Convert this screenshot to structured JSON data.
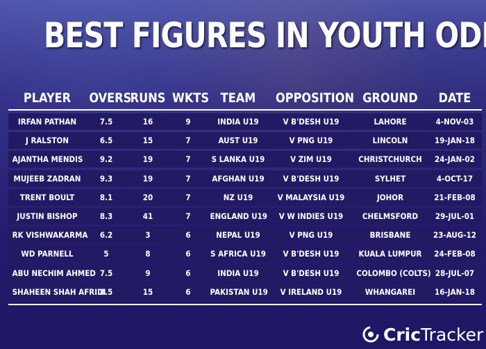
{
  "title": "BEST FIGURES IN YOUTH ODIs",
  "columns": {
    "player": "PLAYER",
    "overs": "OVERS",
    "runs": "RUNS",
    "wkts": "WKTS",
    "team": "TEAM",
    "opposition": "OPPOSITION",
    "ground": "GROUND",
    "date": "DATE"
  },
  "rows": [
    {
      "player": "IRFAN PATHAN",
      "overs": "7.5",
      "runs": "16",
      "wkts": "9",
      "team": "INDIA U19",
      "opposition": "V B'DESH U19",
      "ground": "LAHORE",
      "date": "4-NOV-03"
    },
    {
      "player": "J RALSTON",
      "overs": "6.5",
      "runs": "15",
      "wkts": "7",
      "team": "AUST U19",
      "opposition": "V PNG U19",
      "ground": "LINCOLN",
      "date": "19-JAN-18"
    },
    {
      "player": "AJANTHA MENDIS",
      "overs": "9.2",
      "runs": "19",
      "wkts": "7",
      "team": "S LANKA U19",
      "opposition": "V ZIM U19",
      "ground": "CHRISTCHURCH",
      "date": "24-JAN-02"
    },
    {
      "player": "MUJEEB ZADRAN",
      "overs": "9.3",
      "runs": "19",
      "wkts": "7",
      "team": "AFGHAN U19",
      "opposition": "V B'DESH U19",
      "ground": "SYLHET",
      "date": "4-OCT-17"
    },
    {
      "player": "TRENT BOULT",
      "overs": "8.1",
      "runs": "20",
      "wkts": "7",
      "team": "NZ U19",
      "opposition": "V MALAYSIA U19",
      "ground": "JOHOR",
      "date": "21-FEB-08"
    },
    {
      "player": "JUSTIN BISHOP",
      "overs": "8.3",
      "runs": "41",
      "wkts": "7",
      "team": "ENGLAND U19",
      "opposition": "V W INDIES U19",
      "ground": "CHELMSFORD",
      "date": "29-JUL-01"
    },
    {
      "player": "RK VISHWAKARMA",
      "overs": "6.2",
      "runs": "3",
      "wkts": "6",
      "team": "NEPAL U19",
      "opposition": "V PNG U19",
      "ground": "BRISBANE",
      "date": "23-AUG-12"
    },
    {
      "player": "WD PARNELL",
      "overs": "5",
      "runs": "8",
      "wkts": "6",
      "team": "S AFRICA U19",
      "opposition": "V B'DESH U19",
      "ground": "KUALA LUMPUR",
      "date": "24-FEB-08"
    },
    {
      "player": "ABU NECHIM AHMED",
      "overs": "7.5",
      "runs": "9",
      "wkts": "6",
      "team": "INDIA U19",
      "opposition": "V B'DESH U19",
      "ground": "COLOMBO (COLTS)",
      "date": "28-JUL-07"
    },
    {
      "player": "SHAHEEN SHAH AFRIDI",
      "overs": "8.5",
      "runs": "15",
      "wkts": "6",
      "team": "PAKISTAN U19",
      "opposition": "V IRELAND U19",
      "ground": "WHANGAREI",
      "date": "16-JAN-18"
    }
  ],
  "logo": {
    "brand_first": "Cric",
    "brand_second": "Tracker",
    "icon": "crictracker-logo-icon",
    "color": "#ffffff"
  },
  "colors": {
    "row_background": "#221a62",
    "text": "#ffffff"
  }
}
